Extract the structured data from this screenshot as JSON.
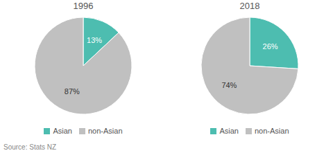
{
  "chart_data": [
    {
      "type": "pie",
      "title": "1996",
      "categories": [
        "Asian",
        "non-Asian"
      ],
      "values": [
        13,
        87
      ],
      "value_labels": [
        "13%",
        "87%"
      ],
      "colors": [
        "#4DBDB0",
        "#C0C0C0"
      ],
      "data_labels": true,
      "legend": "bottom"
    },
    {
      "type": "pie",
      "title": "2018",
      "categories": [
        "Asian",
        "non-Asian"
      ],
      "values": [
        26,
        74
      ],
      "value_labels": [
        "26%",
        "74%"
      ],
      "colors": [
        "#4DBDB0",
        "#C0C0C0"
      ],
      "data_labels": true,
      "legend": "bottom"
    }
  ],
  "annotations": [
    "Source: Stats NZ"
  ]
}
